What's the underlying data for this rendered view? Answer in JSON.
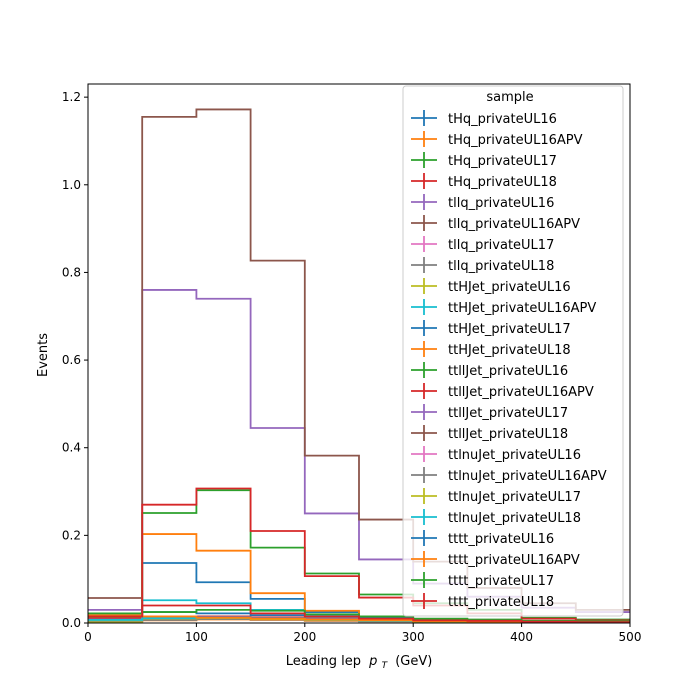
{
  "chart_data": {
    "type": "step-histogram",
    "xlabel": "Leading lep",
    "xlabel_math": "p",
    "xlabel_sub": "T",
    "xlabel_unit": "(GeV)",
    "ylabel": "Events",
    "xlim": [
      0,
      500
    ],
    "ylim": [
      0,
      1.23
    ],
    "xticks": [
      0,
      100,
      200,
      300,
      400,
      500
    ],
    "xtick_labels": [
      "0",
      "100",
      "200",
      "300",
      "400",
      "500"
    ],
    "yticks": [
      0,
      0.2,
      0.4,
      0.6,
      0.8,
      1.0,
      1.2
    ],
    "ytick_labels": [
      "0.0",
      "0.2",
      "0.4",
      "0.6",
      "0.8",
      "1.0",
      "1.2"
    ],
    "bin_edges": [
      0,
      50,
      100,
      150,
      200,
      250,
      300,
      350,
      400,
      450,
      500
    ],
    "legend_title": "sample",
    "legend_position": "upper right",
    "series": [
      {
        "name": "tHq_privateUL16",
        "color": "#1f77b4",
        "values": [
          0.005,
          0.007,
          0.009,
          0.008,
          0.006,
          0.004,
          0.003,
          0.002,
          0.002,
          0.001
        ]
      },
      {
        "name": "tHq_privateUL16APV",
        "color": "#ff7f0e",
        "values": [
          0.004,
          0.006,
          0.008,
          0.007,
          0.005,
          0.004,
          0.003,
          0.002,
          0.001,
          0.001
        ]
      },
      {
        "name": "tHq_privateUL17",
        "color": "#2ca02c",
        "values": [
          0.006,
          0.009,
          0.011,
          0.01,
          0.008,
          0.005,
          0.004,
          0.003,
          0.002,
          0.002
        ]
      },
      {
        "name": "tHq_privateUL18",
        "color": "#d62728",
        "values": [
          0.008,
          0.012,
          0.015,
          0.013,
          0.01,
          0.007,
          0.005,
          0.004,
          0.003,
          0.002
        ]
      },
      {
        "name": "tllq_privateUL16",
        "color": "#9467bd",
        "values": [
          0.03,
          0.76,
          0.74,
          0.445,
          0.25,
          0.145,
          0.09,
          0.06,
          0.035,
          0.025
        ]
      },
      {
        "name": "tllq_privateUL16APV",
        "color": "#8c564b",
        "values": [
          0.057,
          1.155,
          1.172,
          0.827,
          0.382,
          0.236,
          0.14,
          0.08,
          0.045,
          0.03
        ]
      },
      {
        "name": "tllq_privateUL17",
        "color": "#e377c2",
        "values": [
          0.004,
          0.008,
          0.01,
          0.009,
          0.007,
          0.005,
          0.004,
          0.003,
          0.002,
          0.002
        ]
      },
      {
        "name": "tllq_privateUL18",
        "color": "#7f7f7f",
        "values": [
          0.003,
          0.007,
          0.009,
          0.008,
          0.006,
          0.004,
          0.003,
          0.002,
          0.002,
          0.001
        ]
      },
      {
        "name": "ttHJet_privateUL16",
        "color": "#bcbd22",
        "values": [
          0.002,
          0.01,
          0.012,
          0.01,
          0.007,
          0.005,
          0.003,
          0.002,
          0.002,
          0.001
        ]
      },
      {
        "name": "ttHJet_privateUL16APV",
        "color": "#17becf",
        "values": [
          0.01,
          0.052,
          0.045,
          0.03,
          0.018,
          0.01,
          0.006,
          0.004,
          0.003,
          0.002
        ]
      },
      {
        "name": "ttHJet_privateUL17",
        "color": "#1f77b4",
        "values": [
          0.015,
          0.137,
          0.093,
          0.055,
          0.025,
          0.012,
          0.008,
          0.005,
          0.003,
          0.002
        ]
      },
      {
        "name": "ttHJet_privateUL18",
        "color": "#ff7f0e",
        "values": [
          0.012,
          0.203,
          0.165,
          0.068,
          0.028,
          0.006,
          0.004,
          0.003,
          0.002,
          0.001
        ]
      },
      {
        "name": "ttllJet_privateUL16",
        "color": "#2ca02c",
        "values": [
          0.014,
          0.251,
          0.303,
          0.172,
          0.113,
          0.065,
          0.045,
          0.03,
          0.012,
          0.008
        ]
      },
      {
        "name": "ttllJet_privateUL16APV",
        "color": "#d62728",
        "values": [
          0.01,
          0.27,
          0.307,
          0.21,
          0.107,
          0.058,
          0.04,
          0.022,
          0.01,
          0.006
        ]
      },
      {
        "name": "ttllJet_privateUL17",
        "color": "#9467bd",
        "values": [
          0.008,
          0.012,
          0.014,
          0.012,
          0.009,
          0.006,
          0.004,
          0.003,
          0.002,
          0.002
        ]
      },
      {
        "name": "ttllJet_privateUL18",
        "color": "#8c564b",
        "values": [
          0.007,
          0.011,
          0.013,
          0.011,
          0.008,
          0.006,
          0.004,
          0.003,
          0.002,
          0.002
        ]
      },
      {
        "name": "ttlnuJet_privateUL16",
        "color": "#e377c2",
        "values": [
          0.006,
          0.01,
          0.012,
          0.01,
          0.007,
          0.005,
          0.004,
          0.003,
          0.002,
          0.001
        ]
      },
      {
        "name": "ttlnuJet_privateUL16APV",
        "color": "#7f7f7f",
        "values": [
          0.005,
          0.009,
          0.011,
          0.009,
          0.007,
          0.005,
          0.003,
          0.002,
          0.002,
          0.001
        ]
      },
      {
        "name": "ttlnuJet_privateUL17",
        "color": "#bcbd22",
        "values": [
          0.006,
          0.01,
          0.011,
          0.009,
          0.007,
          0.005,
          0.003,
          0.002,
          0.002,
          0.001
        ]
      },
      {
        "name": "ttlnuJet_privateUL18",
        "color": "#17becf",
        "values": [
          0.007,
          0.011,
          0.012,
          0.01,
          0.008,
          0.005,
          0.004,
          0.003,
          0.002,
          0.002
        ]
      },
      {
        "name": "tttt_privateUL16",
        "color": "#1f77b4",
        "values": [
          0.022,
          0.025,
          0.022,
          0.018,
          0.014,
          0.01,
          0.008,
          0.006,
          0.004,
          0.003
        ]
      },
      {
        "name": "tttt_privateUL16APV",
        "color": "#ff7f0e",
        "values": [
          0.018,
          0.015,
          0.012,
          0.01,
          0.008,
          0.006,
          0.004,
          0.003,
          0.002,
          0.002
        ]
      },
      {
        "name": "tttt_privateUL17",
        "color": "#2ca02c",
        "values": [
          0.022,
          0.025,
          0.03,
          0.028,
          0.02,
          0.015,
          0.01,
          0.008,
          0.005,
          0.004
        ]
      },
      {
        "name": "tttt_privateUL18",
        "color": "#d62728",
        "values": [
          0.015,
          0.04,
          0.04,
          0.022,
          0.015,
          0.01,
          0.006,
          0.005,
          0.003,
          0.002
        ]
      }
    ]
  }
}
